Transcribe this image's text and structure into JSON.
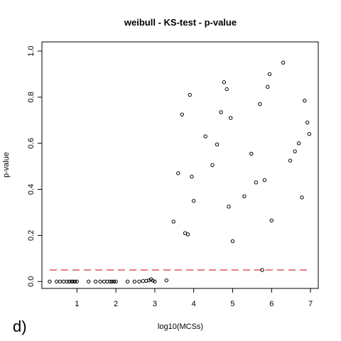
{
  "chart_data": {
    "type": "scatter",
    "title": "weibull - KS-test - p-value",
    "xlabel": "log10(MCSs)",
    "ylabel": "p-value",
    "panel_label": "d)",
    "xlim": [
      0.1,
      7.2
    ],
    "ylim": [
      -0.03,
      1.04
    ],
    "xticks": [
      1,
      2,
      3,
      4,
      5,
      6,
      7
    ],
    "yticks": [
      0.0,
      0.2,
      0.4,
      0.6,
      0.8,
      1.0
    ],
    "xtick_labels": [
      "1",
      "2",
      "3",
      "4",
      "5",
      "6",
      "7"
    ],
    "ytick_labels": [
      "0.0",
      "0.2",
      "0.4",
      "0.6",
      "0.8",
      "1.0"
    ],
    "grid": false,
    "reference_line": {
      "y": 0.05,
      "style": "dashed",
      "color": "#cc0000"
    },
    "point_color": "#000000",
    "points": [
      {
        "x": 0.3,
        "y": 0.0
      },
      {
        "x": 0.48,
        "y": 0.0
      },
      {
        "x": 0.57,
        "y": 0.0
      },
      {
        "x": 0.66,
        "y": 0.0
      },
      {
        "x": 0.74,
        "y": 0.0
      },
      {
        "x": 0.8,
        "y": 0.0
      },
      {
        "x": 0.86,
        "y": 0.0
      },
      {
        "x": 0.9,
        "y": 0.0
      },
      {
        "x": 0.95,
        "y": 0.0
      },
      {
        "x": 1.0,
        "y": 0.0
      },
      {
        "x": 1.3,
        "y": 0.0
      },
      {
        "x": 1.48,
        "y": 0.0
      },
      {
        "x": 1.6,
        "y": 0.0
      },
      {
        "x": 1.7,
        "y": 0.0
      },
      {
        "x": 1.78,
        "y": 0.0
      },
      {
        "x": 1.85,
        "y": 0.0
      },
      {
        "x": 1.9,
        "y": 0.0
      },
      {
        "x": 1.95,
        "y": 0.0
      },
      {
        "x": 2.0,
        "y": 0.0
      },
      {
        "x": 2.3,
        "y": 0.0
      },
      {
        "x": 2.48,
        "y": 0.0
      },
      {
        "x": 2.6,
        "y": 0.0
      },
      {
        "x": 2.7,
        "y": 0.002
      },
      {
        "x": 2.78,
        "y": 0.003
      },
      {
        "x": 2.85,
        "y": 0.005
      },
      {
        "x": 2.9,
        "y": 0.01
      },
      {
        "x": 2.95,
        "y": 0.004
      },
      {
        "x": 3.0,
        "y": 0.0
      },
      {
        "x": 3.3,
        "y": 0.005
      },
      {
        "x": 3.48,
        "y": 0.26
      },
      {
        "x": 3.6,
        "y": 0.47
      },
      {
        "x": 3.7,
        "y": 0.725
      },
      {
        "x": 3.78,
        "y": 0.21
      },
      {
        "x": 3.85,
        "y": 0.205
      },
      {
        "x": 3.9,
        "y": 0.81
      },
      {
        "x": 3.95,
        "y": 0.455
      },
      {
        "x": 4.0,
        "y": 0.35
      },
      {
        "x": 4.3,
        "y": 0.63
      },
      {
        "x": 4.48,
        "y": 0.505
      },
      {
        "x": 4.6,
        "y": 0.595
      },
      {
        "x": 4.7,
        "y": 0.735
      },
      {
        "x": 4.78,
        "y": 0.865
      },
      {
        "x": 4.85,
        "y": 0.835
      },
      {
        "x": 4.9,
        "y": 0.325
      },
      {
        "x": 4.95,
        "y": 0.71
      },
      {
        "x": 5.0,
        "y": 0.175
      },
      {
        "x": 5.3,
        "y": 0.37
      },
      {
        "x": 5.48,
        "y": 0.555
      },
      {
        "x": 5.6,
        "y": 0.43
      },
      {
        "x": 5.7,
        "y": 0.77
      },
      {
        "x": 5.76,
        "y": 0.05
      },
      {
        "x": 5.82,
        "y": 0.44
      },
      {
        "x": 5.9,
        "y": 0.845
      },
      {
        "x": 5.95,
        "y": 0.9
      },
      {
        "x": 6.0,
        "y": 0.265
      },
      {
        "x": 6.3,
        "y": 0.95
      },
      {
        "x": 6.48,
        "y": 0.525
      },
      {
        "x": 6.6,
        "y": 0.565
      },
      {
        "x": 6.7,
        "y": 0.6
      },
      {
        "x": 6.78,
        "y": 0.365
      },
      {
        "x": 6.85,
        "y": 0.785
      },
      {
        "x": 6.92,
        "y": 0.69
      },
      {
        "x": 6.97,
        "y": 0.64
      }
    ]
  }
}
